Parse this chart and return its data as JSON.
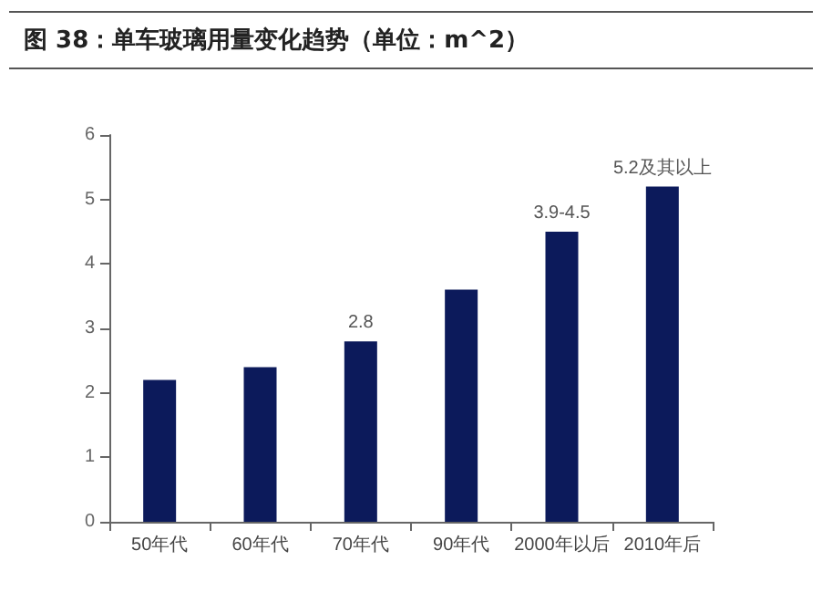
{
  "chart_data": {
    "type": "bar",
    "title": "图 38：单车玻璃用量变化趋势（单位：m^2）",
    "categories": [
      "50年代",
      "60年代",
      "70年代",
      "90年代",
      "2000年以后",
      "2010年后"
    ],
    "values": [
      2.2,
      2.4,
      2.8,
      3.6,
      4.5,
      5.2
    ],
    "value_labels": [
      null,
      null,
      "2.8",
      null,
      "3.9-4.5",
      "5.2及其以上"
    ],
    "color": "#0c1a5b",
    "ylim": [
      0,
      6
    ],
    "yticks": [
      0,
      1,
      2,
      3,
      4,
      5,
      6
    ],
    "grid": false
  }
}
